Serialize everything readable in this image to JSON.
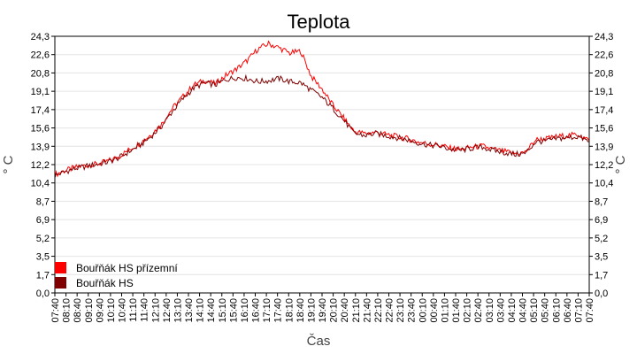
{
  "chart_data": {
    "type": "line",
    "title": "Teplota",
    "xlabel": "Čas",
    "ylabel": "° C",
    "y_ticks": [
      "0,0",
      "1,7",
      "3,5",
      "5,2",
      "6,9",
      "8,7",
      "10,4",
      "12,2",
      "13,9",
      "15,6",
      "17,4",
      "19,1",
      "20,8",
      "22,6",
      "24,3"
    ],
    "ylim": [
      0,
      24.3
    ],
    "x_ticks": [
      "07:40",
      "08:10",
      "08:40",
      "09:10",
      "09:40",
      "10:10",
      "10:40",
      "11:10",
      "11:40",
      "12:10",
      "12:40",
      "13:10",
      "13:40",
      "14:10",
      "14:40",
      "15:10",
      "15:40",
      "16:10",
      "16:40",
      "17:10",
      "17:40",
      "18:10",
      "18:40",
      "19:10",
      "19:40",
      "20:10",
      "20:40",
      "21:10",
      "21:40",
      "22:10",
      "22:40",
      "23:10",
      "23:40",
      "00:10",
      "00:40",
      "01:10",
      "01:40",
      "02:10",
      "02:40",
      "03:10",
      "03:40",
      "04:10",
      "04:40",
      "05:10",
      "05:40",
      "06:10",
      "06:40",
      "07:10",
      "07:40"
    ],
    "grid": true,
    "legend_position": "bottom-left",
    "series": [
      {
        "name": "Bouřňák HS přízemní",
        "color": "#ff0000",
        "values": [
          11.2,
          11.6,
          11.9,
          12.1,
          12.2,
          12.5,
          12.9,
          13.6,
          14.2,
          15.0,
          16.0,
          17.5,
          18.6,
          19.7,
          20.1,
          19.8,
          20.6,
          21.2,
          22.0,
          23.1,
          23.6,
          23.2,
          22.7,
          22.9,
          20.5,
          19.3,
          17.8,
          16.6,
          15.3,
          15.1,
          15.2,
          15.0,
          14.8,
          14.6,
          14.3,
          14.1,
          14.0,
          13.7,
          13.6,
          13.8,
          13.9,
          13.6,
          13.4,
          13.2,
          13.3,
          14.5,
          14.6,
          14.8,
          14.9,
          15.0,
          14.4
        ]
      },
      {
        "name": "Bouřňák HS",
        "color": "#800000",
        "values": [
          11.1,
          11.5,
          11.8,
          12.0,
          12.2,
          12.4,
          12.8,
          13.4,
          14.0,
          14.8,
          15.8,
          17.2,
          18.4,
          19.4,
          19.9,
          19.7,
          20.2,
          20.4,
          20.3,
          20.0,
          20.1,
          20.3,
          20.0,
          19.9,
          19.2,
          18.5,
          17.5,
          16.4,
          15.1,
          14.9,
          15.1,
          14.9,
          14.7,
          14.5,
          14.2,
          14.0,
          13.9,
          13.6,
          13.5,
          13.7,
          13.8,
          13.5,
          13.3,
          13.1,
          13.2,
          14.3,
          14.4,
          14.6,
          14.7,
          14.8,
          14.3
        ]
      }
    ]
  }
}
